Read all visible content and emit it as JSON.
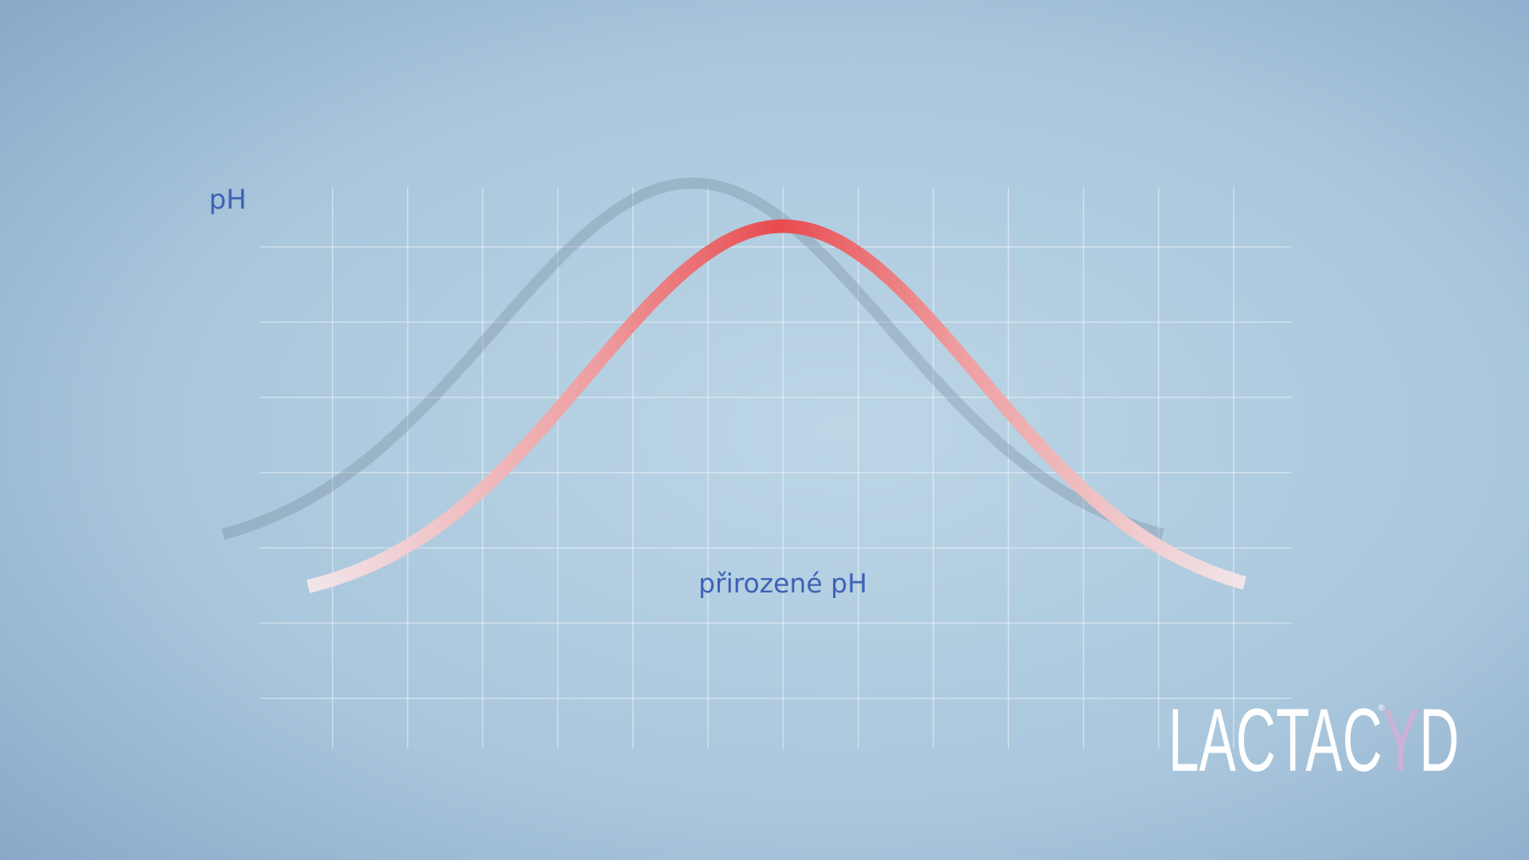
{
  "axis_label": "pH",
  "annotation": "přirozené pH",
  "logo": {
    "parts": [
      "LACTAC",
      "Y",
      "D"
    ],
    "mark": "®"
  }
}
